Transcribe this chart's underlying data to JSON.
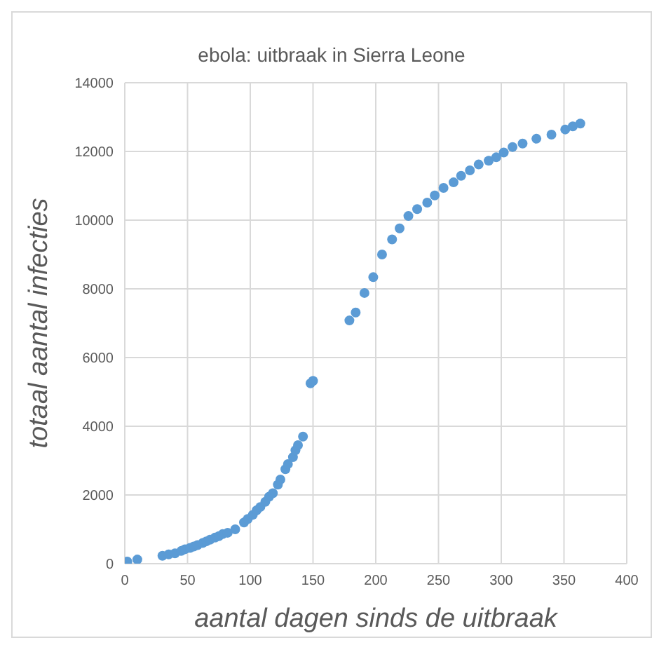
{
  "chart_data": {
    "type": "scatter",
    "title": "ebola: uitbraak in Sierra Leone",
    "xlabel": "aantal dagen sinds de uitbraak",
    "ylabel": "totaal aantal infecties",
    "x": [
      2,
      10,
      30,
      35,
      40,
      45,
      48,
      52,
      55,
      58,
      62,
      65,
      68,
      72,
      75,
      78,
      82,
      88,
      95,
      98,
      102,
      105,
      108,
      112,
      115,
      118,
      122,
      124,
      128,
      130,
      134,
      136,
      138,
      142,
      148,
      150,
      179,
      184,
      191,
      198,
      205,
      213,
      219,
      226,
      233,
      241,
      247,
      254,
      262,
      268,
      275,
      282,
      290,
      296,
      302,
      309,
      317,
      328,
      340,
      351,
      357,
      363
    ],
    "series": [
      {
        "color": "#5b9bd5",
        "values": [
          60,
          120,
          230,
          270,
          300,
          370,
          420,
          460,
          500,
          540,
          600,
          650,
          700,
          760,
          800,
          860,
          900,
          1000,
          1200,
          1300,
          1420,
          1550,
          1650,
          1800,
          1950,
          2050,
          2300,
          2450,
          2750,
          2900,
          3100,
          3300,
          3450,
          3700,
          5250,
          5320,
          7080,
          7310,
          7880,
          8340,
          9000,
          9440,
          9760,
          10120,
          10320,
          10510,
          10720,
          10940,
          11100,
          11290,
          11450,
          11620,
          11730,
          11830,
          11970,
          12130,
          12230,
          12370,
          12490,
          12640,
          12730,
          12810
        ]
      }
    ],
    "xlim": [
      0,
      400
    ],
    "xticks": [
      0,
      50,
      100,
      150,
      200,
      250,
      300,
      350,
      400
    ],
    "ylim": [
      0,
      14000
    ],
    "yticks": [
      0,
      2000,
      4000,
      6000,
      8000,
      10000,
      12000,
      14000
    ],
    "grid": true,
    "marker": "circle",
    "legend": false
  }
}
